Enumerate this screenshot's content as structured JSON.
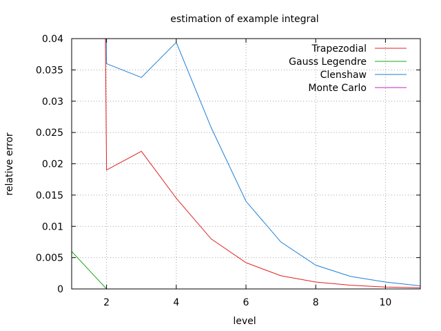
{
  "chart_data": {
    "type": "line",
    "title": "estimation of example integral",
    "xlabel": "level",
    "ylabel": "relative error",
    "xlim": [
      1,
      11
    ],
    "ylim": [
      0,
      0.04
    ],
    "x_ticks": [
      2,
      4,
      6,
      8,
      10
    ],
    "y_ticks": [
      0,
      0.005,
      0.01,
      0.015,
      0.02,
      0.025,
      0.03,
      0.035,
      0.04
    ],
    "x_tick_labels": [
      "2",
      "4",
      "6",
      "8",
      "10"
    ],
    "y_tick_labels": [
      "0",
      "0.005",
      "0.01",
      "0.015",
      "0.02",
      "0.025",
      "0.03",
      "0.035",
      "0.04"
    ],
    "grid": true,
    "legend_position": "top-right",
    "series": [
      {
        "name": "Trapezodial",
        "color": "#e0201f",
        "x": [
          1.96,
          2,
          3,
          4,
          5,
          6,
          7,
          8,
          9,
          10,
          11
        ],
        "y": [
          0.045,
          0.019,
          0.022,
          0.0145,
          0.008,
          0.0042,
          0.0021,
          0.0011,
          0.0006,
          0.0003,
          0.0002
        ]
      },
      {
        "name": "Gauss Legendre",
        "color": "#1aa31a",
        "x": [
          1,
          2
        ],
        "y": [
          0.006,
          0
        ]
      },
      {
        "name": "Clenshaw",
        "color": "#1c7ed6",
        "x": [
          1.98,
          2,
          3,
          4,
          5,
          6,
          7,
          8,
          9,
          10,
          11
        ],
        "y": [
          0.045,
          0.036,
          0.0338,
          0.0394,
          0.0258,
          0.014,
          0.0075,
          0.0038,
          0.002,
          0.0011,
          0.0005
        ]
      },
      {
        "name": "Monte Carlo",
        "color": "#c024c0",
        "x": [],
        "y": []
      }
    ]
  }
}
